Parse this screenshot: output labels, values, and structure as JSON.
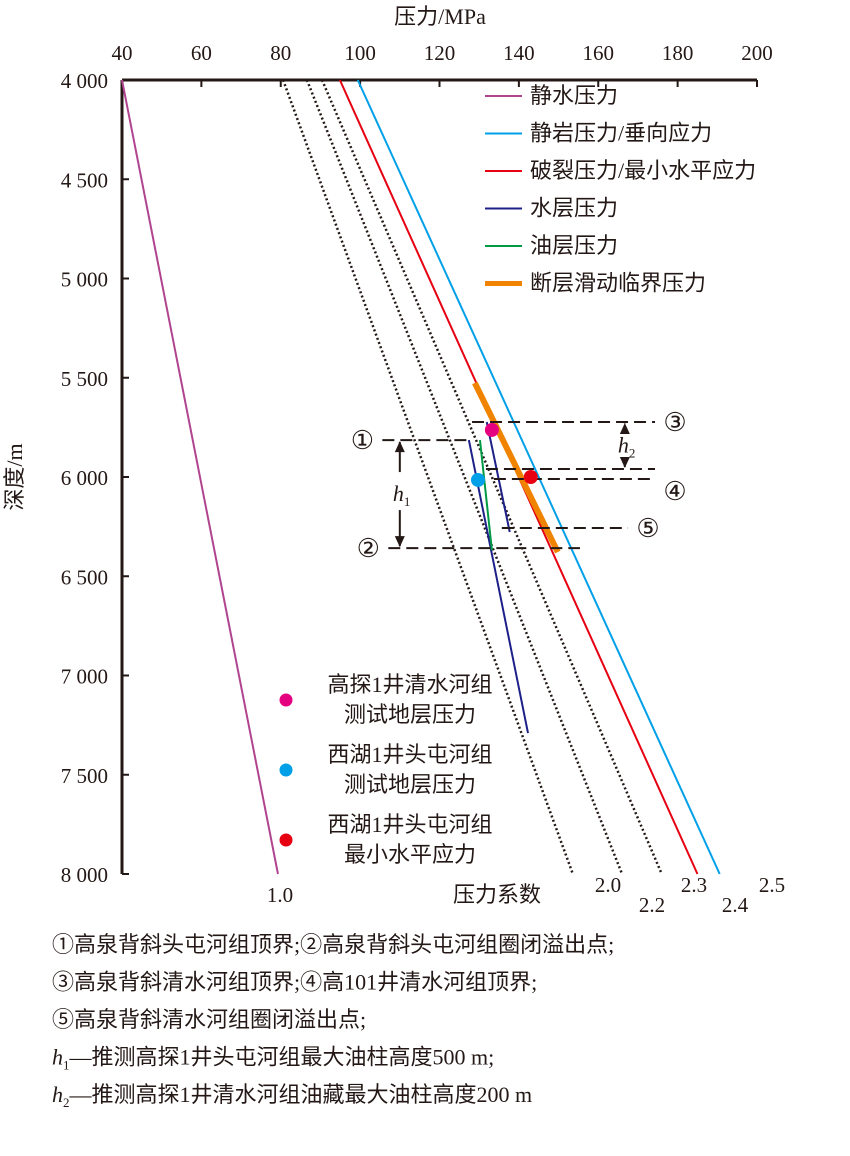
{
  "chart_data": {
    "type": "line",
    "title": "",
    "xlabel": "压力/MPa",
    "ylabel": "深度/m",
    "xlim": [
      40,
      200
    ],
    "ylim": [
      4000,
      8000
    ],
    "x_axis_position": "top",
    "y_inverted": true,
    "x_ticks": [
      40,
      60,
      80,
      100,
      120,
      140,
      160,
      180,
      200
    ],
    "y_ticks": [
      4000,
      4500,
      5000,
      5500,
      6000,
      6500,
      7000,
      7500,
      8000
    ],
    "y_tick_labels": [
      "4 000",
      "4 500",
      "5 000",
      "5 500",
      "6 000",
      "6 500",
      "7 000",
      "7 500",
      "8 000"
    ],
    "grid": false,
    "legend_position": "top-right",
    "series": [
      {
        "name": "静水压力",
        "color": "#b0448f",
        "style": "solid",
        "width": 2,
        "points": [
          [
            40,
            4000
          ],
          [
            79.3,
            8000
          ]
        ],
        "coef_label": "1.0"
      },
      {
        "name": "压力系数 2.0",
        "color": "#231815",
        "style": "dotted",
        "width": 2.5,
        "points": [
          [
            80.6,
            4000
          ],
          [
            153.6,
            8000
          ]
        ],
        "coef_label": "2.0"
      },
      {
        "name": "压力系数 2.2",
        "color": "#231815",
        "style": "dotted",
        "width": 2.5,
        "points": [
          [
            86.6,
            4000
          ],
          [
            166,
            8000
          ]
        ],
        "coef_label": "2.2"
      },
      {
        "name": "压力系数 2.3",
        "color": "#231815",
        "style": "dotted",
        "width": 2.5,
        "points": [
          [
            90.4,
            4000
          ],
          [
            176,
            8000
          ]
        ],
        "coef_label": "2.3"
      },
      {
        "name": "破裂压力/最小水平应力",
        "color": "#e60012",
        "style": "solid",
        "width": 2,
        "points": [
          [
            94.9,
            4000
          ],
          [
            185,
            8000
          ]
        ],
        "coef_label": "2.4"
      },
      {
        "name": "静岩压力/垂向应力",
        "color": "#00a0e9",
        "style": "solid",
        "width": 2,
        "points": [
          [
            99.4,
            4000
          ],
          [
            190.6,
            8000
          ]
        ],
        "coef_label": "2.5"
      },
      {
        "name": "水层压力 (头屯河组)",
        "color": "#1d2088",
        "style": "solid",
        "width": 2,
        "points": [
          [
            127.4,
            5814
          ],
          [
            142.3,
            7290
          ]
        ]
      },
      {
        "name": "水层压力 (清水河组)",
        "color": "#1d2088",
        "style": "solid",
        "width": 2,
        "points": [
          [
            131.9,
            5723
          ],
          [
            137.7,
            6277
          ]
        ]
      },
      {
        "name": "油层压力",
        "color": "#009944",
        "style": "solid",
        "width": 2,
        "points": [
          [
            130.2,
            5814
          ],
          [
            133.2,
            6368
          ]
        ]
      },
      {
        "name": "断层滑动临界压力",
        "color": "#f08300",
        "style": "solid",
        "width": 6,
        "points": [
          [
            128.9,
            5526
          ],
          [
            149.8,
            6378
          ]
        ]
      }
    ],
    "coef_axis_label": "压力系数",
    "legend": [
      {
        "label": "静水压力",
        "color": "#b0448f",
        "width": 2
      },
      {
        "label": "静岩压力/垂向应力",
        "color": "#00a0e9",
        "width": 2
      },
      {
        "label": "破裂压力/最小水平应力",
        "color": "#e60012",
        "width": 2
      },
      {
        "label": "水层压力",
        "color": "#1d2088",
        "width": 2
      },
      {
        "label": "油层压力",
        "color": "#009944",
        "width": 2
      },
      {
        "label": "断层滑动临界压力",
        "color": "#f08300",
        "width": 5
      }
    ],
    "points": [
      {
        "label": [
          "高探1井清水河组",
          "测试地层压力"
        ],
        "color": "#e4007f",
        "x": 133.2,
        "y": 5763
      },
      {
        "label": [
          "西湖1井头屯河组",
          "测试地层压力"
        ],
        "color": "#00a0e9",
        "x": 129.7,
        "y": 6015
      },
      {
        "label": [
          "西湖1井头屯河组",
          "最小水平应力"
        ],
        "color": "#e60012",
        "x": 143,
        "y": 6000
      }
    ],
    "markers": [
      {
        "id": "①",
        "depth": 5814,
        "x_from": 105.6,
        "x_to": 127.8,
        "label_side": "left"
      },
      {
        "id": "②",
        "depth": 6358,
        "x_from": 107.1,
        "x_to": 155.4,
        "label_side": "left"
      },
      {
        "id": "③",
        "depth": 5723,
        "x_from": 128.2,
        "x_to": 174.3,
        "label_side": "right"
      },
      {
        "id": "④",
        "depth": 5960,
        "x_from": 131.7,
        "x_to": 174.3,
        "label_side": "right"
      },
      {
        "id": "④b",
        "depth": 6010,
        "x_from": 133.7,
        "x_to": 174.3,
        "label_side": "none"
      },
      {
        "id": "⑤",
        "depth": 6257,
        "x_from": 135.7,
        "x_to": 167.5,
        "label_side": "right"
      }
    ],
    "intervals": [
      {
        "sym": "h",
        "sub": "1",
        "x": 110,
        "from": 5814,
        "to": 6358
      },
      {
        "sym": "h",
        "sub": "2",
        "x": 166.7,
        "from": 5723,
        "to": 5960
      }
    ]
  },
  "notes": [
    {
      "text": "①高泉背斜头屯河组顶界;②高泉背斜头屯河组圈闭溢出点;"
    },
    {
      "text": "③高泉背斜清水河组顶界;④高101井清水河组顶界;"
    },
    {
      "text": "⑤高泉背斜清水河组圈闭溢出点;"
    },
    {
      "sym": "h",
      "sub": "1",
      "text": "—推测高探1井头屯河组最大油柱高度500 m;"
    },
    {
      "sym": "h",
      "sub": "2",
      "text": "—推测高探1井清水河组油藏最大油柱高度200 m"
    }
  ]
}
